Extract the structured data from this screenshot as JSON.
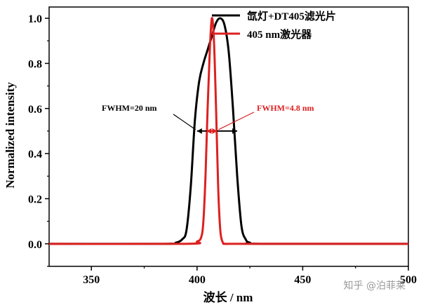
{
  "chart_data": {
    "type": "line",
    "title": "",
    "xlabel": "波长 / nm",
    "ylabel": "Normalized intensity",
    "xlim": [
      330,
      500
    ],
    "ylim": [
      -0.1,
      1.05
    ],
    "xticks": [
      350,
      400,
      450,
      500
    ],
    "yticks": [
      0.0,
      0.2,
      0.4,
      0.6,
      0.8,
      1.0
    ],
    "grid": false,
    "legend_position": "top-right",
    "series": [
      {
        "name": "氙灯+DT405滤光片",
        "color": "#000000",
        "x": [
          330,
          385,
          390,
          393,
          395,
          397,
          399,
          401,
          403,
          405,
          407,
          409,
          411,
          413,
          415,
          417,
          419,
          421,
          423,
          425,
          430,
          500
        ],
        "y": [
          0.0,
          0.0,
          0.005,
          0.02,
          0.06,
          0.25,
          0.55,
          0.72,
          0.8,
          0.86,
          0.92,
          0.98,
          1.0,
          0.97,
          0.85,
          0.6,
          0.3,
          0.08,
          0.02,
          0.005,
          0.0,
          0.0
        ]
      },
      {
        "name": "405 nm激光器",
        "color": "#dd2020",
        "x": [
          330,
          395,
          400,
          402,
          403,
          404,
          405,
          406,
          407,
          408,
          409,
          410,
          411,
          412,
          413,
          415,
          420,
          500
        ],
        "y": [
          0.0,
          0.0,
          0.01,
          0.03,
          0.1,
          0.3,
          0.6,
          0.85,
          1.0,
          0.9,
          0.6,
          0.25,
          0.06,
          0.01,
          0.0,
          0.0,
          0.0,
          0.0
        ]
      }
    ],
    "annotations": [
      {
        "text": "FWHM=20 nm",
        "color": "#000000",
        "range": [
          400,
          419
        ],
        "y": 0.5
      },
      {
        "text": "FWHM=4.8 nm",
        "color": "#dd2020",
        "range": [
          404.5,
          409.5
        ],
        "y": 0.5
      }
    ]
  },
  "watermark": "知乎 @泊菲莱"
}
